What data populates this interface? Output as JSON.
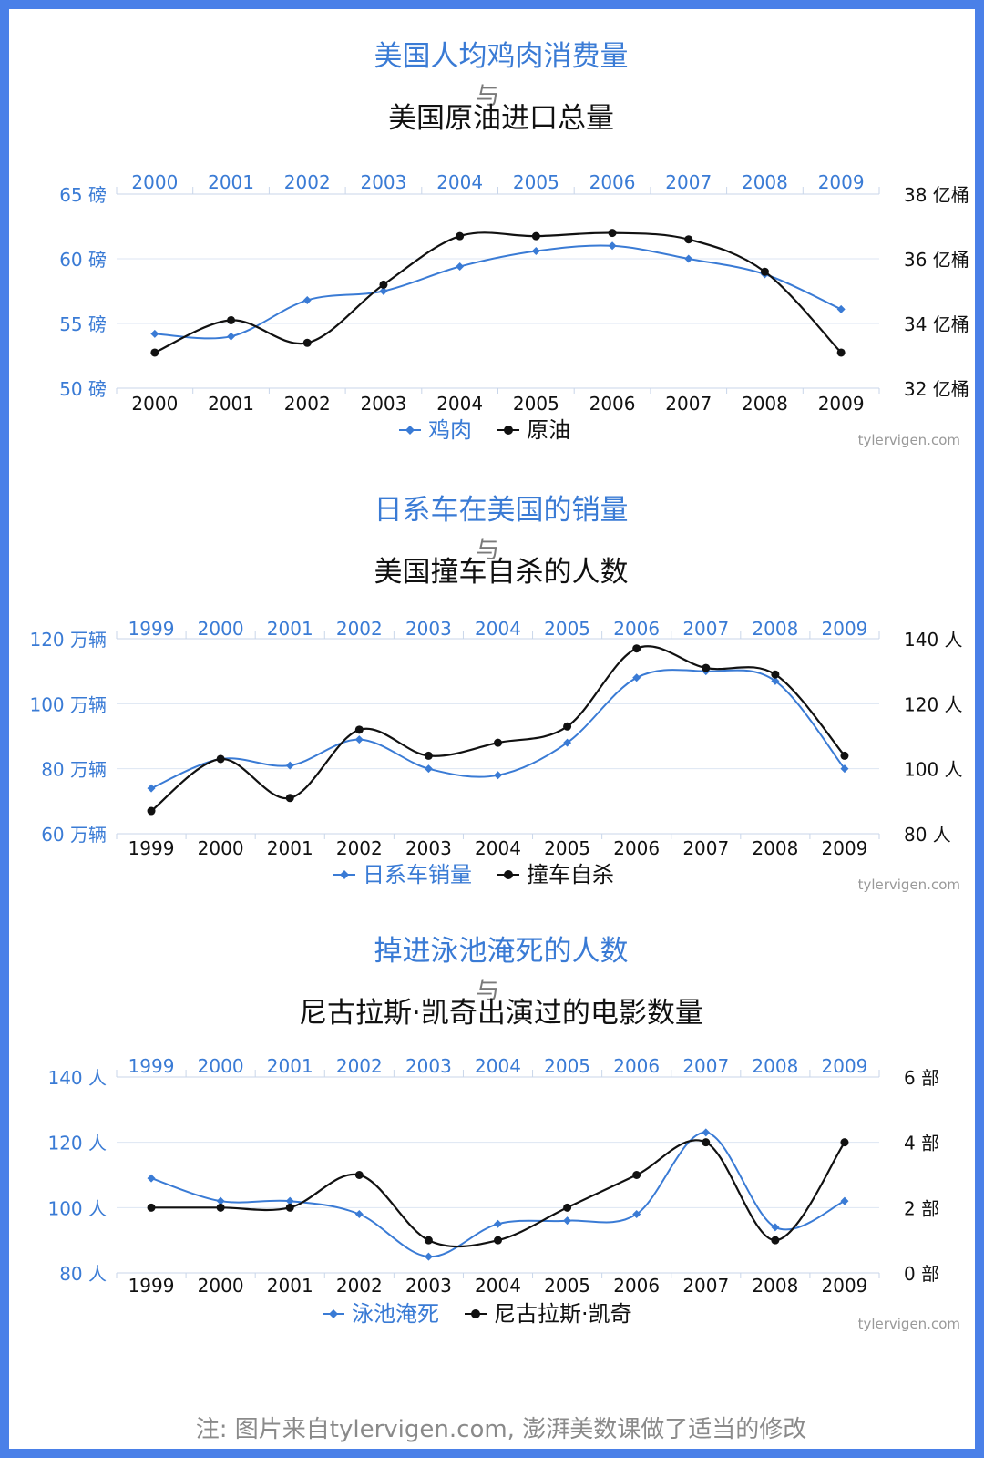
{
  "colors": {
    "blue": "#3a7bd5",
    "black": "#111111",
    "frame": "#4a80e8",
    "grid": "#dde6f3",
    "watermark": "#999999"
  },
  "footnote": "注: 图片来自tylervigen.com, 澎湃美数课做了适当的修改",
  "chart_data": [
    {
      "type": "line",
      "title_top": "美国人均鸡肉消费量",
      "title_join": "与",
      "title_bottom": "美国原油进口总量",
      "categories": [
        "2000",
        "2001",
        "2002",
        "2003",
        "2004",
        "2005",
        "2006",
        "2007",
        "2008",
        "2009"
      ],
      "y_left": {
        "ticks": [
          50,
          55,
          60,
          65
        ],
        "tick_labels": [
          "50 磅",
          "55 磅",
          "60 磅",
          "65 磅"
        ],
        "ylim": [
          50,
          65
        ]
      },
      "y_right": {
        "ticks": [
          32,
          34,
          36,
          38
        ],
        "tick_labels": [
          "32 亿桶",
          "34 亿桶",
          "36 亿桶",
          "38 亿桶"
        ],
        "ylim": [
          32,
          38
        ]
      },
      "grid": true,
      "legend_position": "bottom-center",
      "watermark": "tylervigen.com",
      "series": [
        {
          "name": "鸡肉",
          "axis": "left",
          "color": "blue",
          "marker": "diamond",
          "values": [
            54.2,
            54.0,
            56.8,
            57.5,
            59.4,
            60.6,
            61.0,
            60.0,
            58.8,
            56.1
          ]
        },
        {
          "name": "原油",
          "axis": "right",
          "color": "black",
          "marker": "circle",
          "values": [
            33.1,
            34.1,
            33.4,
            35.2,
            36.7,
            36.7,
            36.8,
            36.6,
            35.6,
            33.1
          ]
        }
      ]
    },
    {
      "type": "line",
      "title_top": "日系车在美国的销量",
      "title_join": "与",
      "title_bottom": "美国撞车自杀的人数",
      "categories": [
        "1999",
        "2000",
        "2001",
        "2002",
        "2003",
        "2004",
        "2005",
        "2006",
        "2007",
        "2008",
        "2009"
      ],
      "y_left": {
        "ticks": [
          60,
          80,
          100,
          120
        ],
        "tick_labels": [
          "60 万辆",
          "80 万辆",
          "100 万辆",
          "120 万辆"
        ],
        "ylim": [
          60,
          120
        ]
      },
      "y_right": {
        "ticks": [
          80,
          100,
          120,
          140
        ],
        "tick_labels": [
          "80 人",
          "100 人",
          "120 人",
          "140 人"
        ],
        "ylim": [
          80,
          140
        ]
      },
      "grid": true,
      "legend_position": "bottom-center",
      "watermark": "tylervigen.com",
      "series": [
        {
          "name": "日系车销量",
          "axis": "left",
          "color": "blue",
          "marker": "diamond",
          "values": [
            74,
            83,
            81,
            89,
            80,
            78,
            88,
            108,
            110,
            107,
            80
          ]
        },
        {
          "name": "撞车自杀",
          "axis": "right",
          "color": "black",
          "marker": "circle",
          "values": [
            87,
            103,
            91,
            112,
            104,
            108,
            113,
            137,
            131,
            129,
            104
          ]
        }
      ]
    },
    {
      "type": "line",
      "title_top": "掉进泳池淹死的人数",
      "title_join": "与",
      "title_bottom": "尼古拉斯·凯奇出演过的电影数量",
      "categories": [
        "1999",
        "2000",
        "2001",
        "2002",
        "2003",
        "2004",
        "2005",
        "2006",
        "2007",
        "2008",
        "2009"
      ],
      "y_left": {
        "ticks": [
          80,
          100,
          120,
          140
        ],
        "tick_labels": [
          "80 人",
          "100 人",
          "120 人",
          "140 人"
        ],
        "ylim": [
          80,
          140
        ]
      },
      "y_right": {
        "ticks": [
          0,
          2,
          4,
          6
        ],
        "tick_labels": [
          "0 部",
          "2 部",
          "4 部",
          "6 部"
        ],
        "ylim": [
          0,
          6
        ]
      },
      "grid": true,
      "legend_position": "bottom-center",
      "watermark": "tylervigen.com",
      "series": [
        {
          "name": "泳池淹死",
          "axis": "left",
          "color": "blue",
          "marker": "diamond",
          "values": [
            109,
            102,
            102,
            98,
            85,
            95,
            96,
            98,
            123,
            94,
            102
          ]
        },
        {
          "name": "尼古拉斯·凯奇",
          "axis": "right",
          "color": "black",
          "marker": "circle",
          "values": [
            2,
            2,
            2,
            3,
            1,
            1,
            2,
            3,
            4,
            1,
            4
          ]
        }
      ]
    }
  ]
}
